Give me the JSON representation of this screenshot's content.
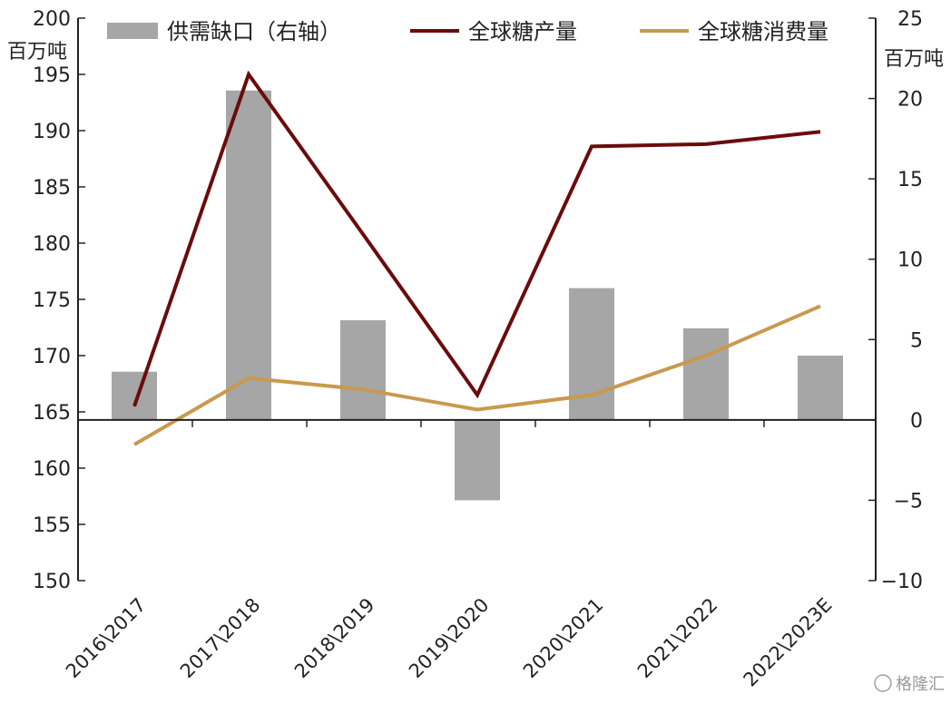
{
  "chart_data": {
    "type": "bar",
    "categories": [
      "2016\\2017",
      "2017\\2018",
      "2018\\2019",
      "2019\\2020",
      "2020\\2021",
      "2021\\2022",
      "2022\\2023E"
    ],
    "series": [
      {
        "name": "供需缺口（右轴）",
        "kind": "bar",
        "axis": "right",
        "color": "#a6a6a6",
        "values": [
          3.0,
          20.5,
          6.2,
          -5.0,
          8.2,
          5.7,
          4.0
        ]
      },
      {
        "name": "全球糖产量",
        "kind": "line",
        "axis": "left",
        "color": "#6b0b0b",
        "values": [
          165.5,
          195.0,
          180.8,
          166.5,
          188.6,
          188.8,
          189.9
        ]
      },
      {
        "name": "全球糖消费量",
        "kind": "line",
        "axis": "left",
        "color": "#c9994e",
        "values": [
          162.1,
          168.0,
          167.0,
          165.2,
          166.5,
          170.0,
          174.4
        ]
      }
    ],
    "left_axis": {
      "unit": "百万吨",
      "ylim": [
        150,
        200
      ],
      "ticks": [
        150,
        155,
        160,
        165,
        170,
        175,
        180,
        185,
        190,
        195,
        200
      ]
    },
    "right_axis": {
      "unit": "百万吨",
      "ylim": [
        -10,
        25
      ],
      "ticks": [
        -10,
        -5,
        0,
        5,
        10,
        15,
        20,
        25
      ]
    },
    "legend": "top",
    "grid": false
  },
  "watermark": "格隆汇"
}
